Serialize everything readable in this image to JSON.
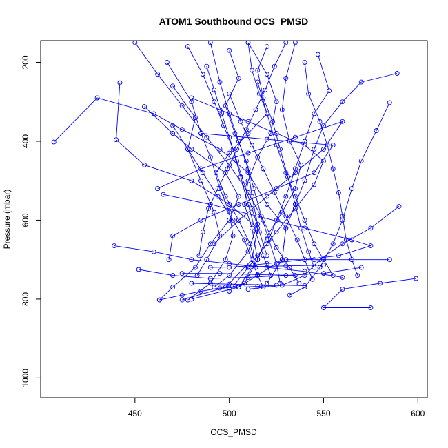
{
  "chart_data": {
    "type": "line",
    "title": "ATOM1 Southbound OCS_PMSD",
    "xlabel": "OCS_PMSD",
    "ylabel": "Pressure (mbar)",
    "xlim": [
      400,
      605
    ],
    "ylim": [
      1050,
      145
    ],
    "y_axis_inverted": true,
    "x_ticks": [
      450,
      500,
      550,
      600
    ],
    "y_ticks": [
      200,
      400,
      600,
      800,
      1000
    ],
    "grid": false,
    "line_color": "#0000ff",
    "marker": "open-circle",
    "series": [
      {
        "points": [
          [
            407,
            402
          ],
          [
            430,
            290
          ],
          [
            460,
            330
          ],
          [
            475,
            370
          ],
          [
            495,
            420
          ],
          [
            510,
            480
          ],
          [
            520,
            560
          ],
          [
            530,
            620
          ],
          [
            528,
            700
          ],
          [
            505,
            770
          ],
          [
            480,
            800
          ]
        ]
      },
      {
        "points": [
          [
            442,
            252
          ],
          [
            440,
            396
          ],
          [
            455,
            460
          ],
          [
            480,
            500
          ],
          [
            500,
            560
          ],
          [
            515,
            620
          ],
          [
            512,
            700
          ],
          [
            498,
            770
          ],
          [
            475,
            802
          ]
        ]
      },
      {
        "points": [
          [
            455,
            312
          ],
          [
            470,
            380
          ],
          [
            480,
            420
          ],
          [
            498,
            480
          ],
          [
            505,
            540
          ],
          [
            500,
            600
          ],
          [
            490,
            660
          ],
          [
            482,
            720
          ],
          [
            470,
            770
          ],
          [
            463,
            802
          ]
        ]
      },
      {
        "points": [
          [
            467,
            200
          ],
          [
            480,
            300
          ],
          [
            485,
            380
          ],
          [
            490,
            440
          ],
          [
            495,
            520
          ],
          [
            500,
            580
          ],
          [
            502,
            640
          ],
          [
            498,
            700
          ],
          [
            490,
            760
          ],
          [
            478,
            802
          ]
        ]
      },
      {
        "points": [
          [
            490,
            150
          ],
          [
            495,
            250
          ],
          [
            500,
            330
          ],
          [
            505,
            400
          ],
          [
            510,
            470
          ],
          [
            512,
            540
          ],
          [
            515,
            610
          ],
          [
            510,
            680
          ],
          [
            500,
            740
          ],
          [
            492,
            770
          ]
        ]
      },
      {
        "points": [
          [
            510,
            150
          ],
          [
            520,
            230
          ],
          [
            525,
            300
          ],
          [
            522,
            380
          ],
          [
            515,
            440
          ],
          [
            510,
            500
          ],
          [
            508,
            560
          ],
          [
            512,
            620
          ],
          [
            515,
            700
          ],
          [
            508,
            760
          ],
          [
            500,
            772
          ]
        ]
      },
      {
        "points": [
          [
            535,
            150
          ],
          [
            530,
            240
          ],
          [
            528,
            320
          ],
          [
            532,
            400
          ],
          [
            538,
            460
          ],
          [
            535,
            520
          ],
          [
            528,
            580
          ],
          [
            520,
            640
          ],
          [
            515,
            700
          ],
          [
            505,
            770
          ]
        ]
      },
      {
        "points": [
          [
            547,
            180
          ],
          [
            553,
            272
          ],
          [
            545,
            330
          ],
          [
            540,
            400
          ],
          [
            535,
            470
          ],
          [
            530,
            540
          ],
          [
            525,
            600
          ],
          [
            520,
            660
          ],
          [
            510,
            720
          ],
          [
            500,
            780
          ]
        ]
      },
      {
        "points": [
          [
            589,
            228
          ],
          [
            570,
            250
          ],
          [
            560,
            300
          ],
          [
            550,
            360
          ],
          [
            545,
            420
          ],
          [
            540,
            500
          ],
          [
            535,
            560
          ],
          [
            530,
            620
          ],
          [
            528,
            700
          ],
          [
            520,
            760
          ]
        ]
      },
      {
        "points": [
          [
            585,
            302
          ],
          [
            578,
            373
          ],
          [
            570,
            450
          ],
          [
            565,
            520
          ],
          [
            560,
            600
          ],
          [
            555,
            660
          ],
          [
            548,
            720
          ],
          [
            540,
            770
          ],
          [
            532,
            790
          ]
        ]
      },
      {
        "points": [
          [
            590,
            565
          ],
          [
            575,
            620
          ],
          [
            560,
            660
          ],
          [
            548,
            700
          ],
          [
            540,
            740
          ],
          [
            528,
            765
          ],
          [
            510,
            775
          ]
        ]
      },
      {
        "points": [
          [
            599,
            748
          ],
          [
            580,
            760
          ],
          [
            560,
            775
          ],
          [
            550,
            822
          ],
          [
            575,
            822
          ]
        ]
      },
      {
        "points": [
          [
            439,
            665
          ],
          [
            460,
            680
          ],
          [
            480,
            700
          ],
          [
            500,
            710
          ],
          [
            520,
            720
          ],
          [
            540,
            730
          ],
          [
            560,
            745
          ]
        ]
      },
      {
        "points": [
          [
            452,
            725
          ],
          [
            470,
            740
          ],
          [
            490,
            748
          ],
          [
            510,
            745
          ],
          [
            530,
            740
          ],
          [
            550,
            735
          ],
          [
            570,
            720
          ]
        ]
      },
      {
        "points": [
          [
            463,
            802
          ],
          [
            475,
            790
          ],
          [
            485,
            780
          ],
          [
            495,
            772
          ],
          [
            505,
            770
          ],
          [
            515,
            768
          ],
          [
            525,
            765
          ]
        ]
      },
      {
        "points": [
          [
            470,
            260
          ],
          [
            482,
            340
          ],
          [
            478,
            420
          ],
          [
            485,
            500
          ],
          [
            492,
            580
          ],
          [
            495,
            640
          ],
          [
            488,
            700
          ],
          [
            483,
            740
          ]
        ]
      },
      {
        "points": [
          [
            478,
            160
          ],
          [
            486,
            230
          ],
          [
            492,
            300
          ],
          [
            497,
            360
          ],
          [
            502,
            420
          ],
          [
            506,
            490
          ],
          [
            510,
            560
          ],
          [
            514,
            630
          ],
          [
            518,
            690
          ],
          [
            522,
            740
          ]
        ]
      },
      {
        "points": [
          [
            500,
            170
          ],
          [
            505,
            240
          ],
          [
            498,
            310
          ],
          [
            503,
            380
          ],
          [
            509,
            450
          ],
          [
            513,
            520
          ],
          [
            517,
            590
          ],
          [
            521,
            650
          ],
          [
            525,
            710
          ],
          [
            527,
            760
          ]
        ]
      },
      {
        "points": [
          [
            520,
            160
          ],
          [
            515,
            220
          ],
          [
            518,
            290
          ],
          [
            523,
            350
          ],
          [
            527,
            420
          ],
          [
            531,
            490
          ],
          [
            535,
            560
          ],
          [
            538,
            620
          ],
          [
            542,
            680
          ],
          [
            545,
            720
          ]
        ]
      },
      {
        "points": [
          [
            540,
            200
          ],
          [
            542,
            280
          ],
          [
            548,
            350
          ],
          [
            552,
            410
          ],
          [
            555,
            470
          ],
          [
            558,
            530
          ],
          [
            560,
            590
          ],
          [
            562,
            650
          ],
          [
            565,
            700
          ],
          [
            568,
            740
          ]
        ]
      },
      {
        "points": [
          [
            450,
            150
          ],
          [
            462,
            230
          ],
          [
            475,
            310
          ],
          [
            488,
            390
          ],
          [
            500,
            460
          ],
          [
            510,
            530
          ],
          [
            518,
            600
          ],
          [
            525,
            670
          ],
          [
            532,
            720
          ],
          [
            537,
            760
          ]
        ]
      },
      {
        "points": [
          [
            485,
            380
          ],
          [
            520,
            395
          ],
          [
            555,
            410
          ],
          [
            545,
            480
          ],
          [
            525,
            520
          ],
          [
            505,
            560
          ],
          [
            485,
            600
          ],
          [
            470,
            640
          ],
          [
            468,
            700
          ]
        ]
      },
      {
        "points": [
          [
            462,
            520
          ],
          [
            485,
            470
          ],
          [
            510,
            430
          ],
          [
            535,
            390
          ],
          [
            560,
            350
          ],
          [
            550,
            420
          ],
          [
            535,
            480
          ],
          [
            520,
            540
          ],
          [
            505,
            600
          ],
          [
            492,
            660
          ]
        ]
      },
      {
        "points": [
          [
            465,
            535
          ],
          [
            490,
            560
          ],
          [
            515,
            590
          ],
          [
            540,
            620
          ],
          [
            565,
            650
          ],
          [
            575,
            665
          ],
          [
            558,
            690
          ],
          [
            540,
            700
          ],
          [
            520,
            710
          ],
          [
            500,
            720
          ]
        ]
      },
      {
        "points": [
          [
            480,
            290
          ],
          [
            495,
            320
          ],
          [
            510,
            350
          ],
          [
            525,
            380
          ],
          [
            540,
            410
          ],
          [
            550,
            450
          ],
          [
            545,
            510
          ],
          [
            535,
            570
          ],
          [
            525,
            630
          ],
          [
            515,
            690
          ]
        ]
      },
      {
        "points": [
          [
            510,
            150
          ],
          [
            512,
            220
          ],
          [
            516,
            280
          ],
          [
            520,
            330
          ],
          [
            510,
            380
          ],
          [
            500,
            430
          ],
          [
            493,
            480
          ],
          [
            498,
            540
          ],
          [
            505,
            600
          ],
          [
            511,
            660
          ],
          [
            514,
            720
          ]
        ]
      },
      {
        "points": [
          [
            530,
            150
          ],
          [
            524,
            210
          ],
          [
            519,
            270
          ],
          [
            514,
            320
          ],
          [
            509,
            370
          ],
          [
            504,
            420
          ],
          [
            499,
            470
          ],
          [
            494,
            520
          ],
          [
            489,
            570
          ],
          [
            486,
            630
          ],
          [
            484,
            690
          ]
        ]
      },
      {
        "points": [
          [
            470,
            360
          ],
          [
            478,
            420
          ],
          [
            486,
            480
          ],
          [
            494,
            540
          ],
          [
            502,
            600
          ],
          [
            508,
            650
          ],
          [
            512,
            700
          ],
          [
            515,
            740
          ],
          [
            518,
            770
          ]
        ]
      },
      {
        "points": [
          [
            500,
            280
          ],
          [
            506,
            350
          ],
          [
            512,
            410
          ],
          [
            518,
            470
          ],
          [
            524,
            530
          ],
          [
            530,
            590
          ],
          [
            536,
            650
          ],
          [
            540,
            700
          ],
          [
            544,
            750
          ]
        ]
      },
      {
        "points": [
          [
            515,
            250
          ],
          [
            520,
            330
          ],
          [
            525,
            410
          ],
          [
            530,
            480
          ],
          [
            535,
            540
          ],
          [
            540,
            600
          ],
          [
            545,
            660
          ],
          [
            550,
            700
          ],
          [
            555,
            740
          ]
        ]
      },
      {
        "points": [
          [
            488,
            210
          ],
          [
            492,
            270
          ],
          [
            496,
            330
          ],
          [
            500,
            390
          ],
          [
            504,
            450
          ],
          [
            508,
            510
          ],
          [
            512,
            570
          ],
          [
            516,
            630
          ],
          [
            520,
            690
          ]
        ]
      },
      {
        "points": [
          [
            530,
            700
          ],
          [
            545,
            700
          ],
          [
            565,
            700
          ],
          [
            585,
            700
          ]
        ]
      },
      {
        "points": [
          [
            475,
            735
          ],
          [
            495,
            735
          ],
          [
            515,
            738
          ],
          [
            535,
            740
          ]
        ]
      },
      {
        "points": [
          [
            480,
            760
          ],
          [
            500,
            762
          ],
          [
            520,
            764
          ],
          [
            540,
            766
          ]
        ]
      },
      {
        "points": [
          [
            490,
            720
          ],
          [
            510,
            718
          ],
          [
            530,
            716
          ],
          [
            550,
            714
          ]
        ]
      }
    ]
  }
}
